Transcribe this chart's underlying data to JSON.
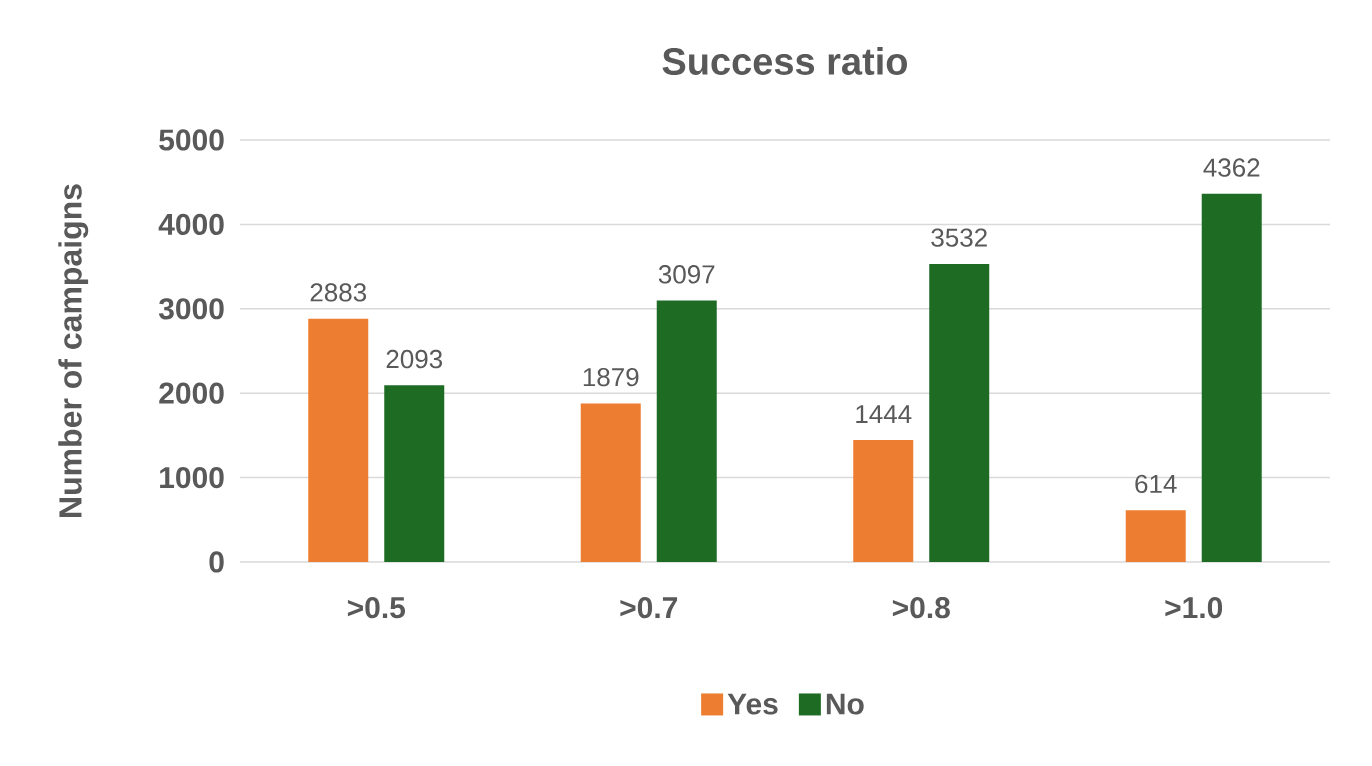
{
  "chart_data": {
    "type": "bar",
    "title": "Success ratio",
    "ylabel": "Number of campaigns",
    "categories": [
      ">0.5",
      ">0.7",
      ">0.8",
      ">1.0"
    ],
    "series": [
      {
        "name": "Yes",
        "color": "#ed7d31",
        "values": [
          2883,
          1879,
          1444,
          614
        ]
      },
      {
        "name": "No",
        "color": "#1e6b24",
        "values": [
          2093,
          3097,
          3532,
          4362
        ]
      }
    ],
    "ylim": [
      0,
      5000
    ],
    "yticks": [
      0,
      1000,
      2000,
      3000,
      4000,
      5000
    ],
    "grid": "y",
    "legend": "bottom",
    "data_labels": true
  }
}
